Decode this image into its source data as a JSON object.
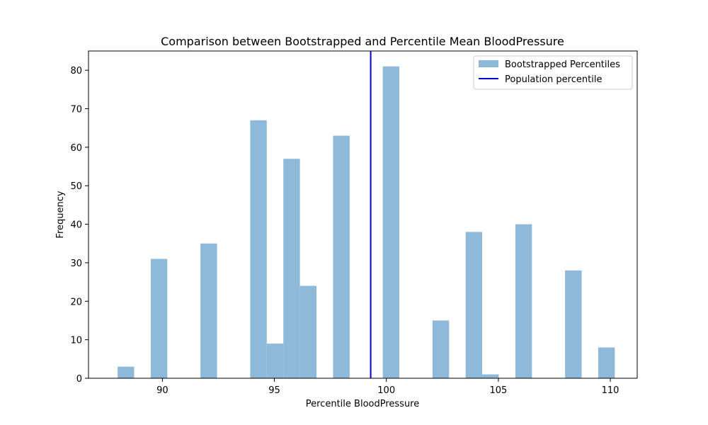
{
  "chart_data": {
    "type": "bar",
    "title": "Comparison between Bootstrapped and Percentile Mean BloodPressure",
    "xlabel": "Percentile BloodPressure",
    "ylabel": "Frequency",
    "xlim": [
      86.7,
      111.2
    ],
    "ylim": [
      0,
      85
    ],
    "x_ticks": [
      90,
      95,
      100,
      105,
      110
    ],
    "y_ticks": [
      0,
      10,
      20,
      30,
      40,
      50,
      60,
      70,
      80
    ],
    "grid": false,
    "legend_position": "top-right",
    "series": [
      {
        "name": "Bootstrapped Percentiles",
        "color": "#8fb9d9",
        "bins": [
          {
            "x0": 88.0,
            "x1": 88.74,
            "value": 3
          },
          {
            "x0": 89.48,
            "x1": 90.22,
            "value": 31
          },
          {
            "x0": 91.7,
            "x1": 92.44,
            "value": 35
          },
          {
            "x0": 93.92,
            "x1": 94.66,
            "value": 67
          },
          {
            "x0": 94.66,
            "x1": 95.4,
            "value": 9
          },
          {
            "x0": 95.4,
            "x1": 96.14,
            "value": 57
          },
          {
            "x0": 96.14,
            "x1": 96.88,
            "value": 24
          },
          {
            "x0": 97.62,
            "x1": 98.36,
            "value": 63
          },
          {
            "x0": 99.84,
            "x1": 100.58,
            "value": 81
          },
          {
            "x0": 102.06,
            "x1": 102.8,
            "value": 15
          },
          {
            "x0": 103.54,
            "x1": 104.28,
            "value": 38
          },
          {
            "x0": 104.28,
            "x1": 105.02,
            "value": 1
          },
          {
            "x0": 105.76,
            "x1": 106.5,
            "value": 40
          },
          {
            "x0": 107.98,
            "x1": 108.72,
            "value": 28
          },
          {
            "x0": 109.46,
            "x1": 110.2,
            "value": 8
          }
        ]
      },
      {
        "name": "Population percentile",
        "type": "vline",
        "color": "#0000cc",
        "x": 99.3
      }
    ]
  }
}
